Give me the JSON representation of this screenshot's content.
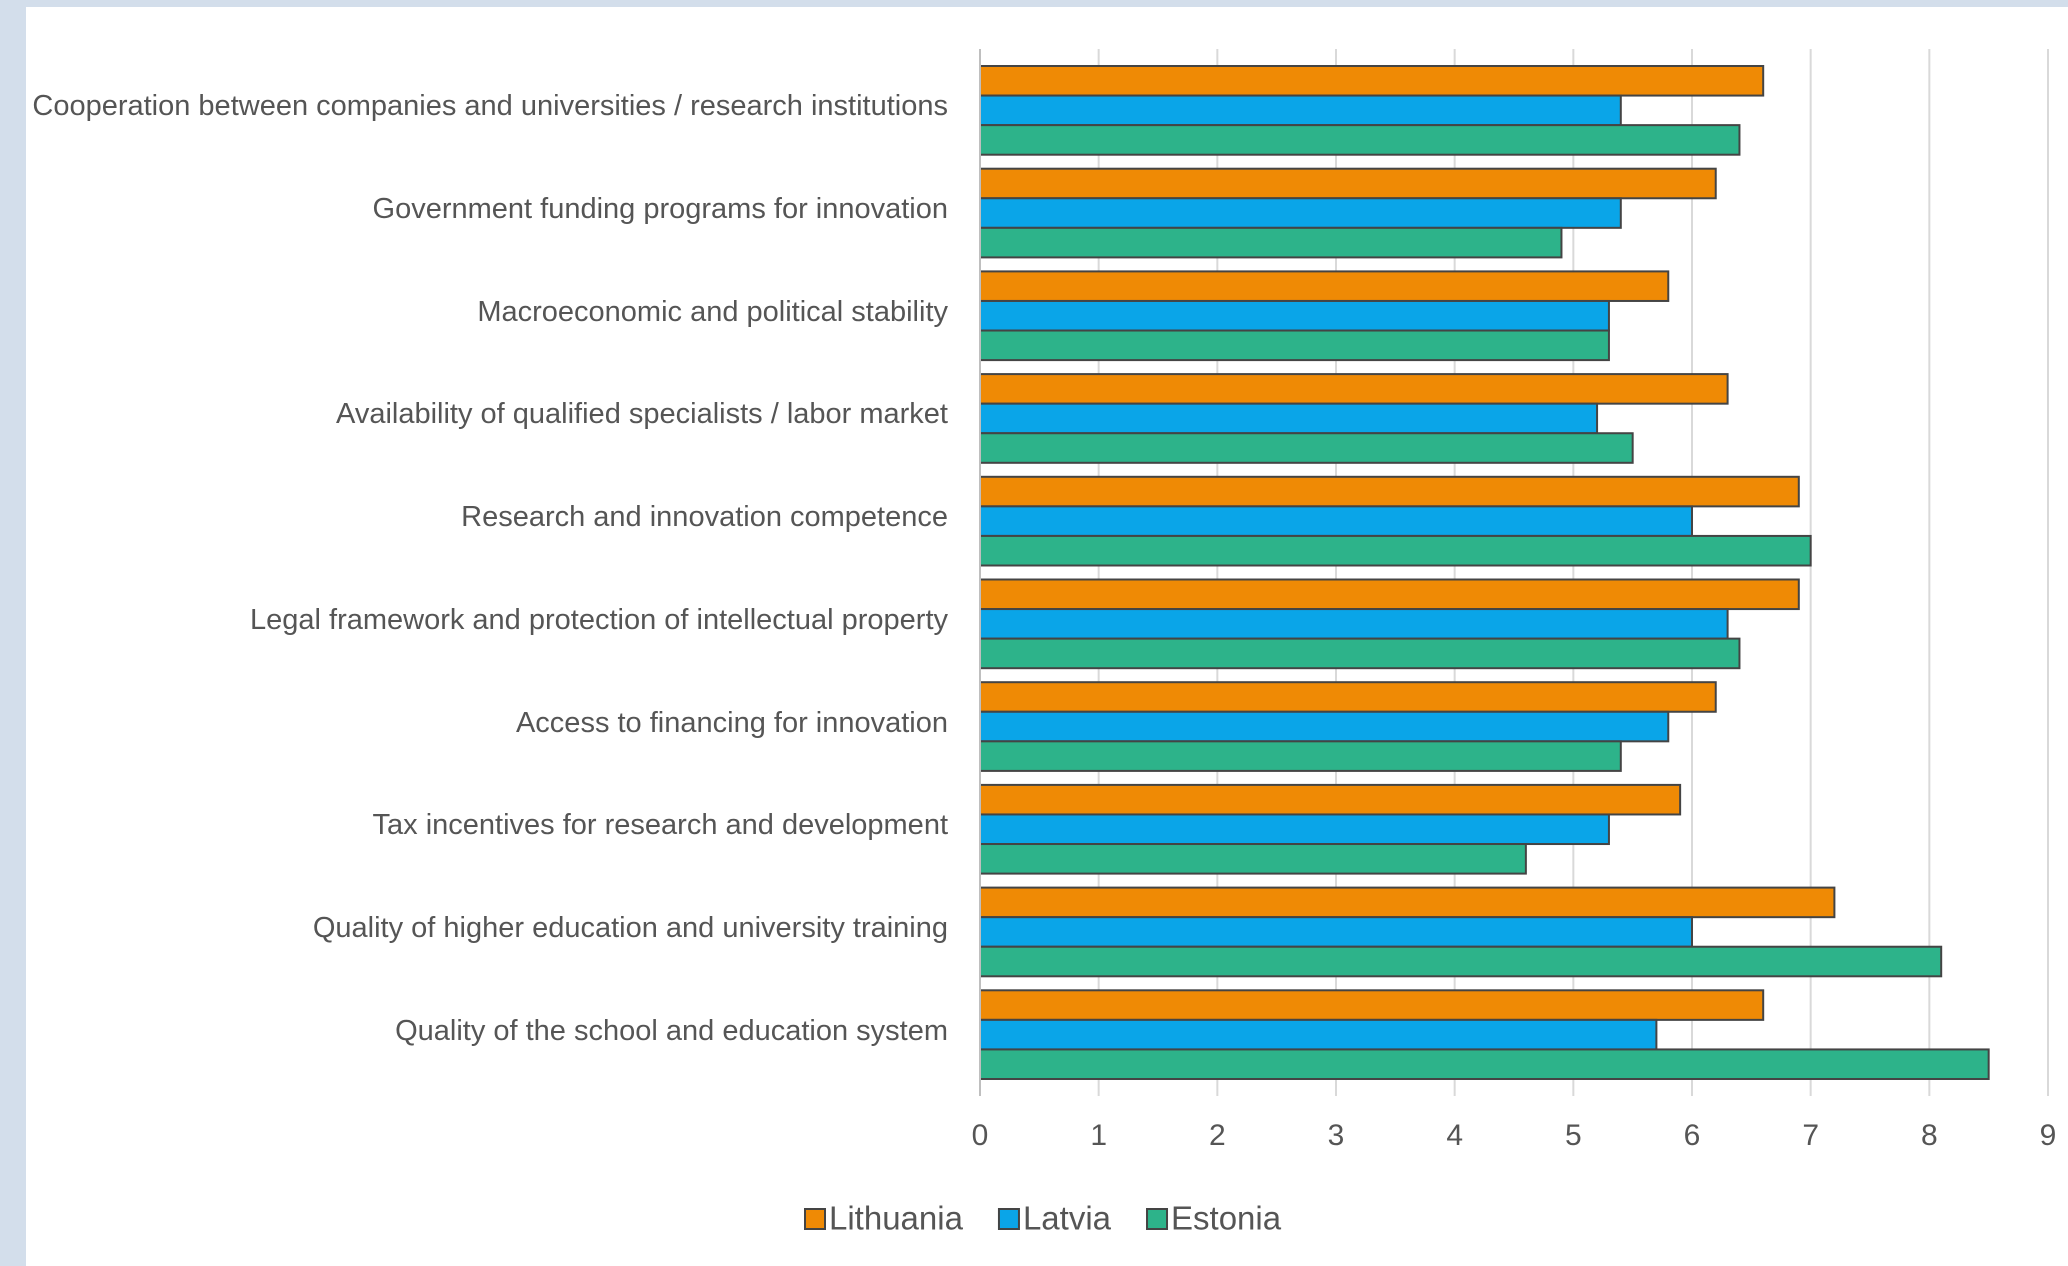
{
  "chart_data": {
    "type": "bar",
    "orientation": "horizontal",
    "categories": [
      "Cooperation between companies and universities / research institutions",
      "Government funding programs for innovation",
      "Macroeconomic and political stability",
      "Availability of qualified specialists / labor market",
      "Research and innovation competence",
      "Legal framework and protection of intellectual property",
      "Access to financing for innovation",
      "Tax incentives for research and development",
      "Quality of higher education and university training",
      "Quality of the school and education system"
    ],
    "series": [
      {
        "name": "Lithuania",
        "color": "#ef8a05",
        "values": [
          6.6,
          6.2,
          5.8,
          6.3,
          6.9,
          6.9,
          6.2,
          5.9,
          7.2,
          6.6
        ]
      },
      {
        "name": "Latvia",
        "color": "#0aa5e8",
        "values": [
          5.4,
          5.4,
          5.3,
          5.2,
          6.0,
          6.3,
          5.8,
          5.3,
          6.0,
          5.7
        ]
      },
      {
        "name": "Estonia",
        "color": "#2db38a",
        "values": [
          6.4,
          4.9,
          5.3,
          5.5,
          7.0,
          6.4,
          5.4,
          4.6,
          8.1,
          8.5
        ]
      }
    ],
    "xlim": [
      0,
      9
    ],
    "xticks": [
      0,
      1,
      2,
      3,
      4,
      5,
      6,
      7,
      8,
      9
    ],
    "grid": true,
    "legend": "bottom"
  }
}
